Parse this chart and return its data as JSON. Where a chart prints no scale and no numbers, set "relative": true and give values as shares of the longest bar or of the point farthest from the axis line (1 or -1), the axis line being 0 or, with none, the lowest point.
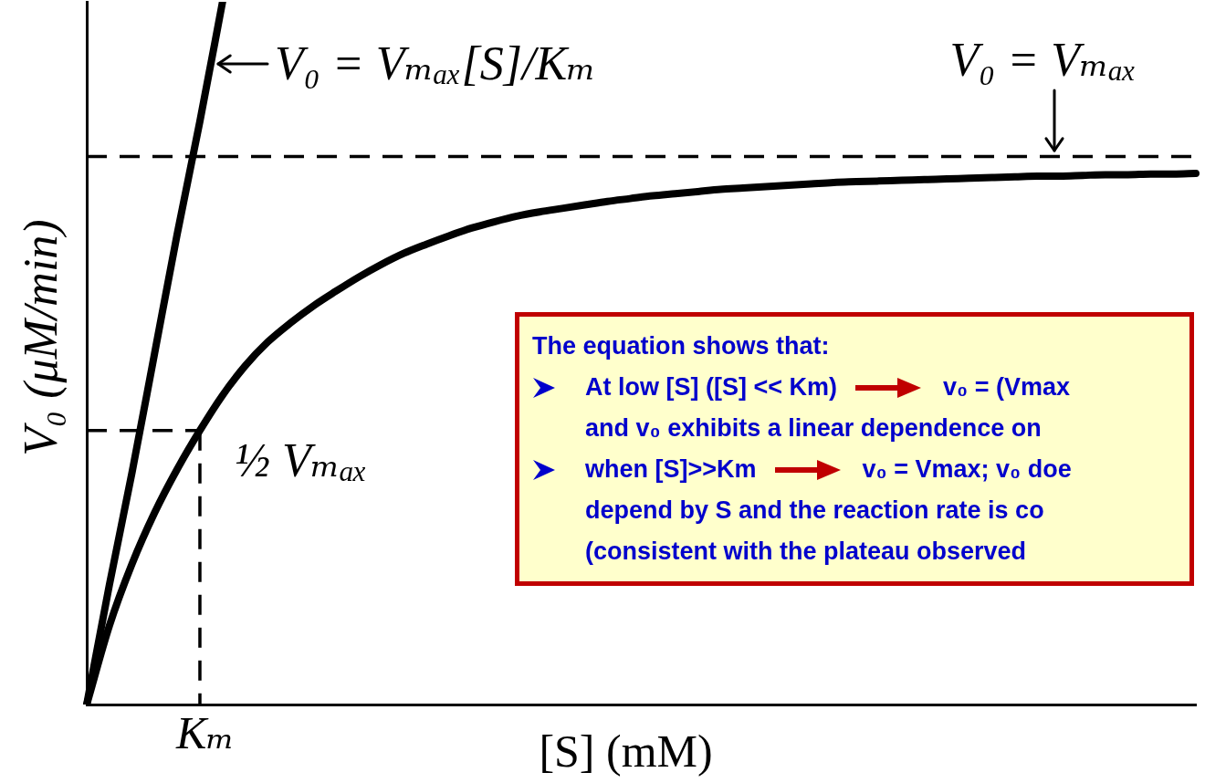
{
  "chart_data": {
    "type": "line",
    "xlabel": "[S] (mM)",
    "ylabel": "V₀ (μM/min)",
    "categories": [
      null,
      null,
      null,
      null,
      null,
      null,
      null,
      null,
      null,
      null,
      null,
      null,
      null,
      null,
      null,
      null,
      null,
      null,
      null,
      null,
      null,
      null,
      null,
      null,
      null,
      null,
      null,
      null,
      null,
      null,
      null,
      null,
      null,
      null,
      null,
      null,
      null,
      null,
      null,
      null,
      null,
      null,
      null,
      null,
      null,
      null,
      null,
      null,
      null,
      null
    ],
    "relative": true,
    "series": [
      {
        "name": "V₀ = Vₘₐₓ[S]/Kₘ",
        "color": "#000000",
        "values": [
          0,
          0.17,
          0.33,
          0.5,
          0.67,
          0.83,
          1,
          null,
          null,
          null,
          null,
          null,
          null,
          null,
          null,
          null,
          null,
          null,
          null,
          null,
          null,
          null,
          null,
          null,
          null,
          null,
          null,
          null,
          null,
          null,
          null,
          null,
          null,
          null,
          null,
          null,
          null,
          null,
          null,
          null,
          null,
          null,
          null,
          null,
          null,
          null,
          null,
          null,
          null,
          null
        ]
      },
      {
        "color": "#000000",
        "values": [
          0,
          0.112,
          0.2,
          0.273,
          0.335,
          0.39,
          0.44,
          0.482,
          0.516,
          0.543,
          0.567,
          0.588,
          0.608,
          0.626,
          0.642,
          0.655,
          0.667,
          0.678,
          0.687,
          0.695,
          0.701,
          0.706,
          0.711,
          0.716,
          0.72,
          0.724,
          0.727,
          0.73,
          0.733,
          0.735,
          0.737,
          0.739,
          0.741,
          0.743,
          0.744,
          0.745,
          0.746,
          0.747,
          0.748,
          0.749,
          0.75,
          0.751,
          0.752,
          0.752,
          0.753,
          0.754,
          0.754,
          0.755,
          0.755,
          0.756
        ]
      }
    ],
    "ref_lines": [
      {
        "axis": "y",
        "value": 0.78,
        "label": "V₀ = Vₘₐₓ",
        "color": "#000000",
        "line_style": "dashed"
      },
      {
        "axis": "y",
        "value": 0.39,
        "label": "½ Vₘₐₓ",
        "color": "#000000",
        "line_style": "dashed"
      }
    ],
    "annotations": [
      "Kₘ",
      "The equation shows that:",
      "At low [S] ([S] << Km)",
      "v₀ = (Vmax",
      "and v₀ exhibits a linear dependence on",
      "when [S]>>Km",
      "v₀ = Vmax;  v₀ doe",
      "depend by S and the reaction rate is co",
      "(consistent with the plateau observed"
    ]
  }
}
